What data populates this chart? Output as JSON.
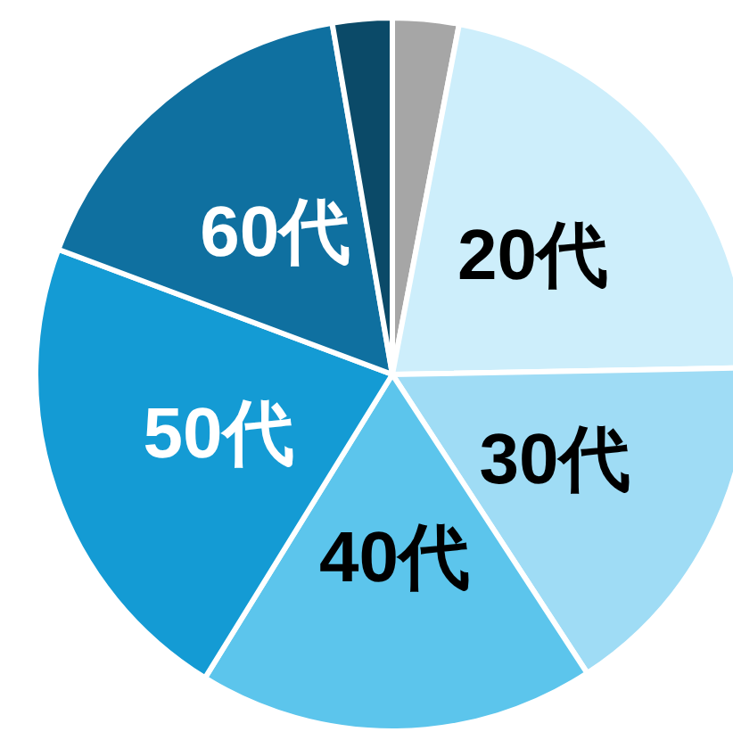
{
  "chart_data": {
    "type": "pie",
    "categories": [
      null,
      "20代",
      "30代",
      "40代",
      "50代",
      "60代",
      null
    ],
    "values": [
      3,
      21.7,
      16.1,
      18,
      21.9,
      16.6,
      2.7
    ],
    "colors": [
      "#a6a6a6",
      "#cdeefb",
      "#9fdcf5",
      "#5cc5ec",
      "#149bd4",
      "#0f70a0",
      "#0b4a68"
    ],
    "legend": false
  }
}
